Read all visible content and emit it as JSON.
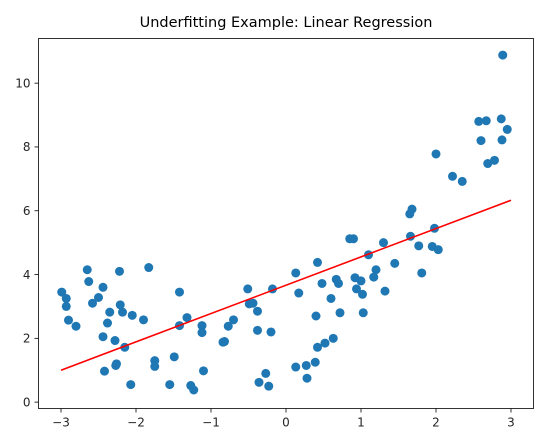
{
  "chart_data": {
    "type": "scatter",
    "title": "Underfitting Example: Linear Regression",
    "xlabel": "",
    "ylabel": "",
    "xlim": [
      -3.3,
      3.3
    ],
    "ylim": [
      -0.2,
      11.4
    ],
    "xticks": [
      -3,
      -2,
      -1,
      0,
      1,
      2,
      3
    ],
    "yticks": [
      0,
      2,
      4,
      6,
      8,
      10
    ],
    "grid": false,
    "colors": {
      "points": "#1f77b4",
      "line": "#ff0000"
    },
    "points": [
      [
        -2.99,
        3.45
      ],
      [
        -2.93,
        3.25
      ],
      [
        -2.93,
        3.0
      ],
      [
        -2.9,
        2.57
      ],
      [
        -2.8,
        2.38
      ],
      [
        -2.65,
        4.15
      ],
      [
        -2.63,
        3.78
      ],
      [
        -2.58,
        3.1
      ],
      [
        -2.5,
        3.28
      ],
      [
        -2.44,
        3.6
      ],
      [
        -2.44,
        2.05
      ],
      [
        -2.42,
        0.97
      ],
      [
        -2.38,
        2.48
      ],
      [
        -2.35,
        2.82
      ],
      [
        -2.28,
        1.93
      ],
      [
        -2.27,
        1.15
      ],
      [
        -2.26,
        1.2
      ],
      [
        -2.22,
        4.1
      ],
      [
        -2.21,
        3.05
      ],
      [
        -2.18,
        2.82
      ],
      [
        -2.15,
        1.72
      ],
      [
        -2.07,
        0.55
      ],
      [
        -2.05,
        2.72
      ],
      [
        -1.9,
        2.58
      ],
      [
        -1.83,
        4.22
      ],
      [
        -1.75,
        1.3
      ],
      [
        -1.75,
        1.12
      ],
      [
        -1.55,
        0.55
      ],
      [
        -1.49,
        1.42
      ],
      [
        -1.42,
        3.45
      ],
      [
        -1.42,
        2.4
      ],
      [
        -1.32,
        2.65
      ],
      [
        -1.27,
        0.52
      ],
      [
        -1.23,
        0.38
      ],
      [
        -1.12,
        2.4
      ],
      [
        -1.12,
        2.18
      ],
      [
        -1.1,
        0.98
      ],
      [
        -0.84,
        1.88
      ],
      [
        -0.82,
        1.9
      ],
      [
        -0.77,
        2.38
      ],
      [
        -0.7,
        2.58
      ],
      [
        -0.51,
        3.55
      ],
      [
        -0.49,
        3.08
      ],
      [
        -0.44,
        3.1
      ],
      [
        -0.38,
        2.85
      ],
      [
        -0.38,
        2.25
      ],
      [
        -0.36,
        0.62
      ],
      [
        -0.27,
        0.9
      ],
      [
        -0.23,
        0.5
      ],
      [
        -0.2,
        2.2
      ],
      [
        -0.18,
        3.55
      ],
      [
        0.13,
        4.05
      ],
      [
        0.13,
        1.1
      ],
      [
        0.17,
        3.42
      ],
      [
        0.27,
        1.15
      ],
      [
        0.28,
        0.75
      ],
      [
        0.39,
        1.25
      ],
      [
        0.4,
        2.7
      ],
      [
        0.42,
        4.38
      ],
      [
        0.42,
        1.72
      ],
      [
        0.48,
        3.72
      ],
      [
        0.52,
        1.85
      ],
      [
        0.6,
        3.25
      ],
      [
        0.63,
        2.0
      ],
      [
        0.67,
        3.85
      ],
      [
        0.7,
        3.72
      ],
      [
        0.72,
        2.8
      ],
      [
        0.85,
        5.12
      ],
      [
        0.9,
        5.12
      ],
      [
        0.92,
        3.9
      ],
      [
        0.94,
        3.55
      ],
      [
        1.0,
        3.8
      ],
      [
        1.02,
        3.38
      ],
      [
        1.03,
        2.8
      ],
      [
        1.1,
        4.62
      ],
      [
        1.17,
        3.92
      ],
      [
        1.2,
        4.15
      ],
      [
        1.3,
        5.0
      ],
      [
        1.32,
        3.48
      ],
      [
        1.45,
        4.35
      ],
      [
        1.65,
        5.9
      ],
      [
        1.66,
        5.2
      ],
      [
        1.68,
        6.05
      ],
      [
        1.77,
        4.9
      ],
      [
        1.81,
        4.05
      ],
      [
        1.95,
        4.88
      ],
      [
        1.98,
        5.45
      ],
      [
        2.0,
        7.78
      ],
      [
        2.03,
        4.78
      ],
      [
        2.22,
        7.08
      ],
      [
        2.35,
        6.92
      ],
      [
        2.57,
        8.8
      ],
      [
        2.6,
        8.2
      ],
      [
        2.67,
        8.82
      ],
      [
        2.69,
        7.48
      ],
      [
        2.78,
        7.58
      ],
      [
        2.87,
        8.88
      ],
      [
        2.88,
        8.22
      ],
      [
        2.89,
        10.88
      ],
      [
        2.95,
        8.55
      ]
    ],
    "fit_line": {
      "x": [
        -3,
        3
      ],
      "y": [
        1.0,
        6.33
      ]
    }
  }
}
